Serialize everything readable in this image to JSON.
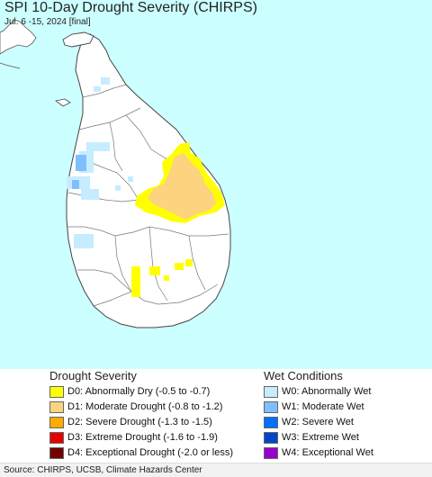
{
  "title": "SPI 10-Day Drought Severity (CHIRPS)",
  "subtitle": "Jul. 6 -15, 2024 [final]",
  "colors": {
    "ocean": "#ccffff",
    "land": "#ffffff",
    "border": "#555555",
    "D0": "#ffff00",
    "D1": "#fcd37f",
    "D2": "#ffaa00",
    "D3": "#e60000",
    "D4": "#730000",
    "W0": "#c6ecff",
    "W1": "#7fbfff",
    "W2": "#0070ff",
    "W3": "#0046c8",
    "W4": "#9900cc"
  },
  "legend": {
    "drought_heading": "Drought Severity",
    "wet_heading": "Wet Conditions",
    "drought": [
      {
        "code": "D0",
        "label": "D0: Abnormally Dry (-0.5 to -0.7)",
        "color": "#ffff00"
      },
      {
        "code": "D1",
        "label": "D1: Moderate Drought (-0.8 to -1.2)",
        "color": "#fcd37f"
      },
      {
        "code": "D2",
        "label": "D2: Severe Drought (-1.3 to -1.5)",
        "color": "#ffaa00"
      },
      {
        "code": "D3",
        "label": "D3: Extreme Drought (-1.6 to -1.9)",
        "color": "#e60000"
      },
      {
        "code": "D4",
        "label": "D4: Exceptional Drought (-2.0 or less)",
        "color": "#730000"
      }
    ],
    "wet": [
      {
        "code": "W0",
        "label": "W0: Abnormally Wet",
        "color": "#c6ecff"
      },
      {
        "code": "W1",
        "label": "W1: Moderate Wet",
        "color": "#7fbfff"
      },
      {
        "code": "W2",
        "label": "W2: Severe Wet",
        "color": "#0070ff"
      },
      {
        "code": "W3",
        "label": "W3: Extreme Wet",
        "color": "#0046c8"
      },
      {
        "code": "W4",
        "label": "W4: Exceptional Wet",
        "color": "#9900cc"
      }
    ]
  },
  "source": "Source: CHIRPS, UCSB, Climate Hazards Center"
}
